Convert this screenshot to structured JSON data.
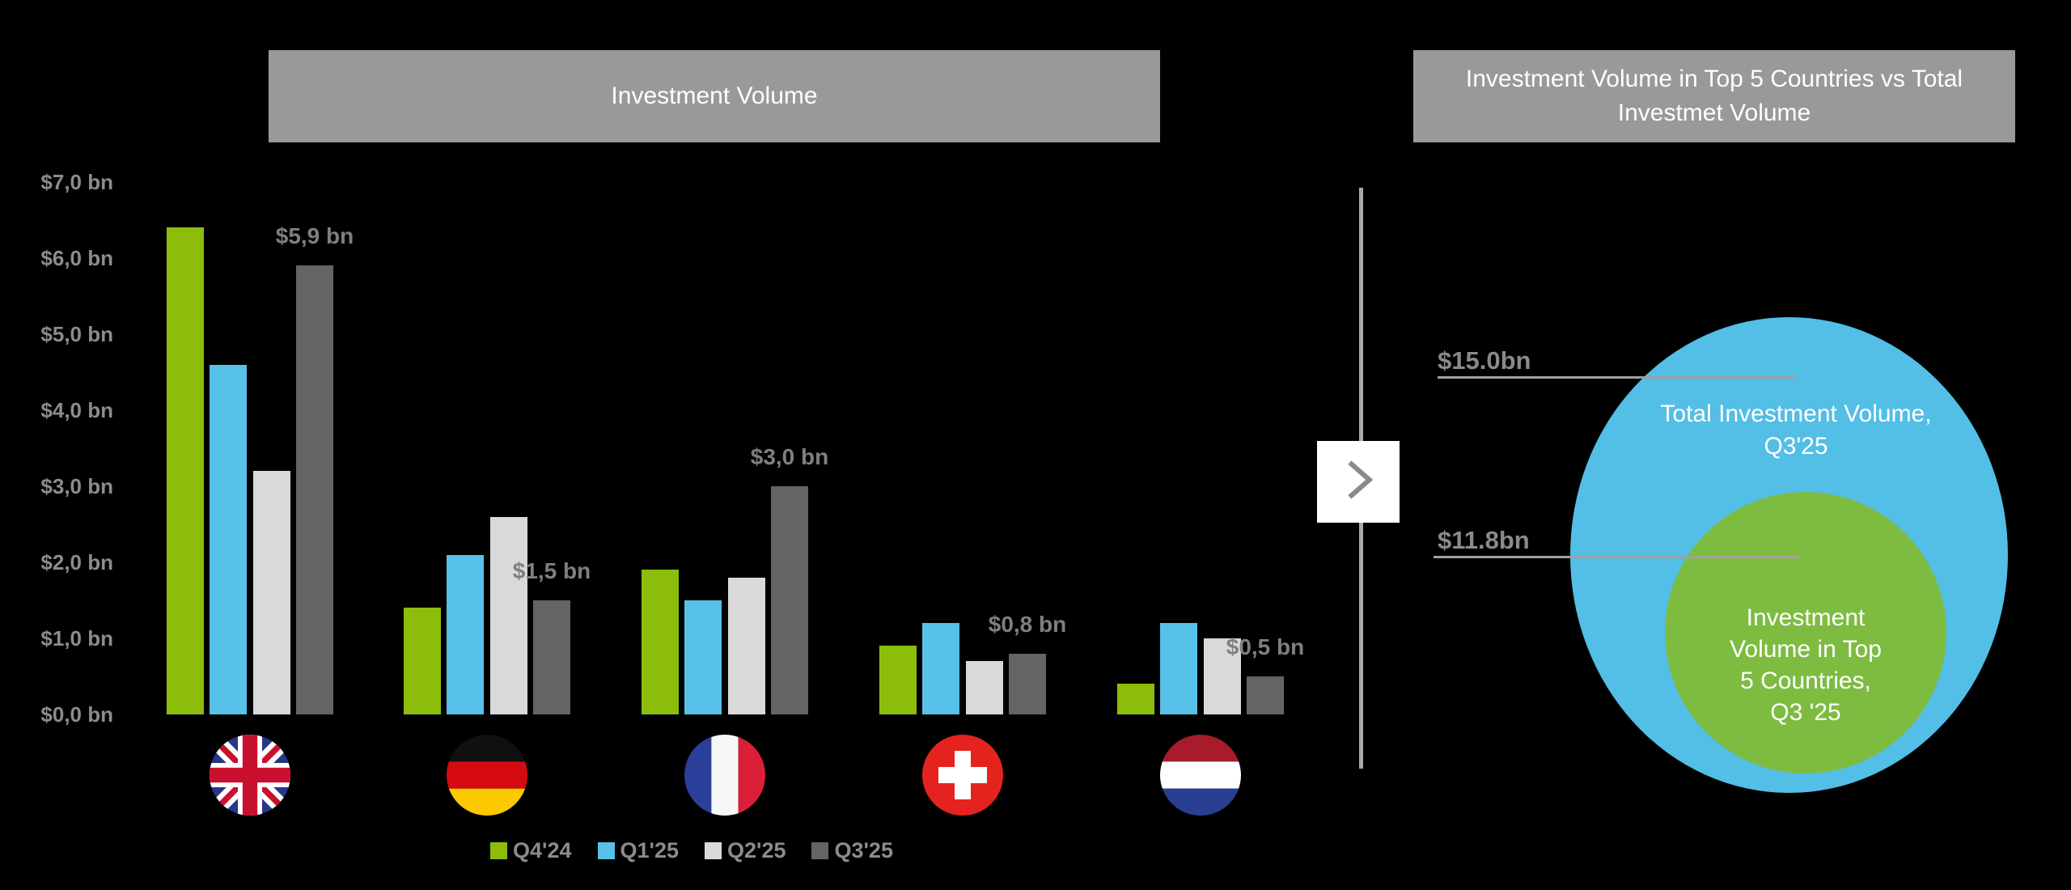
{
  "chart_data": [
    {
      "type": "bar",
      "title": "Investment Volume",
      "categories": [
        "United Kingdom",
        "Germany",
        "France",
        "Switzerland",
        "Netherlands"
      ],
      "flag_icons": [
        "uk-flag-icon",
        "germany-flag-icon",
        "france-flag-icon",
        "switzerland-flag-icon",
        "netherlands-flag-icon"
      ],
      "series": [
        {
          "name": "Q4'24",
          "color": "#8CBD0B",
          "values": [
            6.4,
            1.4,
            1.9,
            0.9,
            0.4
          ]
        },
        {
          "name": "Q1'25",
          "color": "#57C1E8",
          "values": [
            4.6,
            2.1,
            1.5,
            1.2,
            1.2
          ]
        },
        {
          "name": "Q2'25",
          "color": "#D9D9D9",
          "values": [
            3.2,
            2.6,
            1.8,
            0.7,
            1.0
          ]
        },
        {
          "name": "Q3'25",
          "color": "#646464",
          "values": [
            5.9,
            1.5,
            3.0,
            0.8,
            0.5
          ]
        }
      ],
      "data_labels": {
        "series": "Q3'25",
        "labels": [
          "$5,9 bn",
          "$1,5 bn",
          "$3,0 bn",
          "$0,8 bn",
          "$0,5 bn"
        ]
      },
      "y_ticks": {
        "values": [
          0,
          1,
          2,
          3,
          4,
          5,
          6,
          7
        ],
        "labels": [
          "$0,0 bn",
          "$1,0 bn",
          "$2,0 bn",
          "$3,0 bn",
          "$4,0 bn",
          "$5,0 bn",
          "$6,0 bn",
          "$7,0 bn"
        ]
      },
      "ylim": [
        0,
        7
      ],
      "grid": false,
      "legend_position": "bottom",
      "background": "#000000",
      "title_bar_color": "#999999"
    },
    {
      "type": "pie",
      "subtype": "nested_circles",
      "title": "Investment Volume in Top 5 Countries vs  Total\nInvestmet Volume",
      "circles": [
        {
          "label": "Total Investment Volume,\nQ3'25",
          "value_bn": 15.0,
          "value_label": "$15.0bn",
          "color": "#53BEE6"
        },
        {
          "label": "Investment\nVolume in Top\n5 Countries,\nQ3 '25",
          "value_bn": 11.8,
          "value_label": "$11.8bn",
          "color": "#7EBC41"
        }
      ],
      "arrow_icon": "chevron-right-icon"
    }
  ]
}
